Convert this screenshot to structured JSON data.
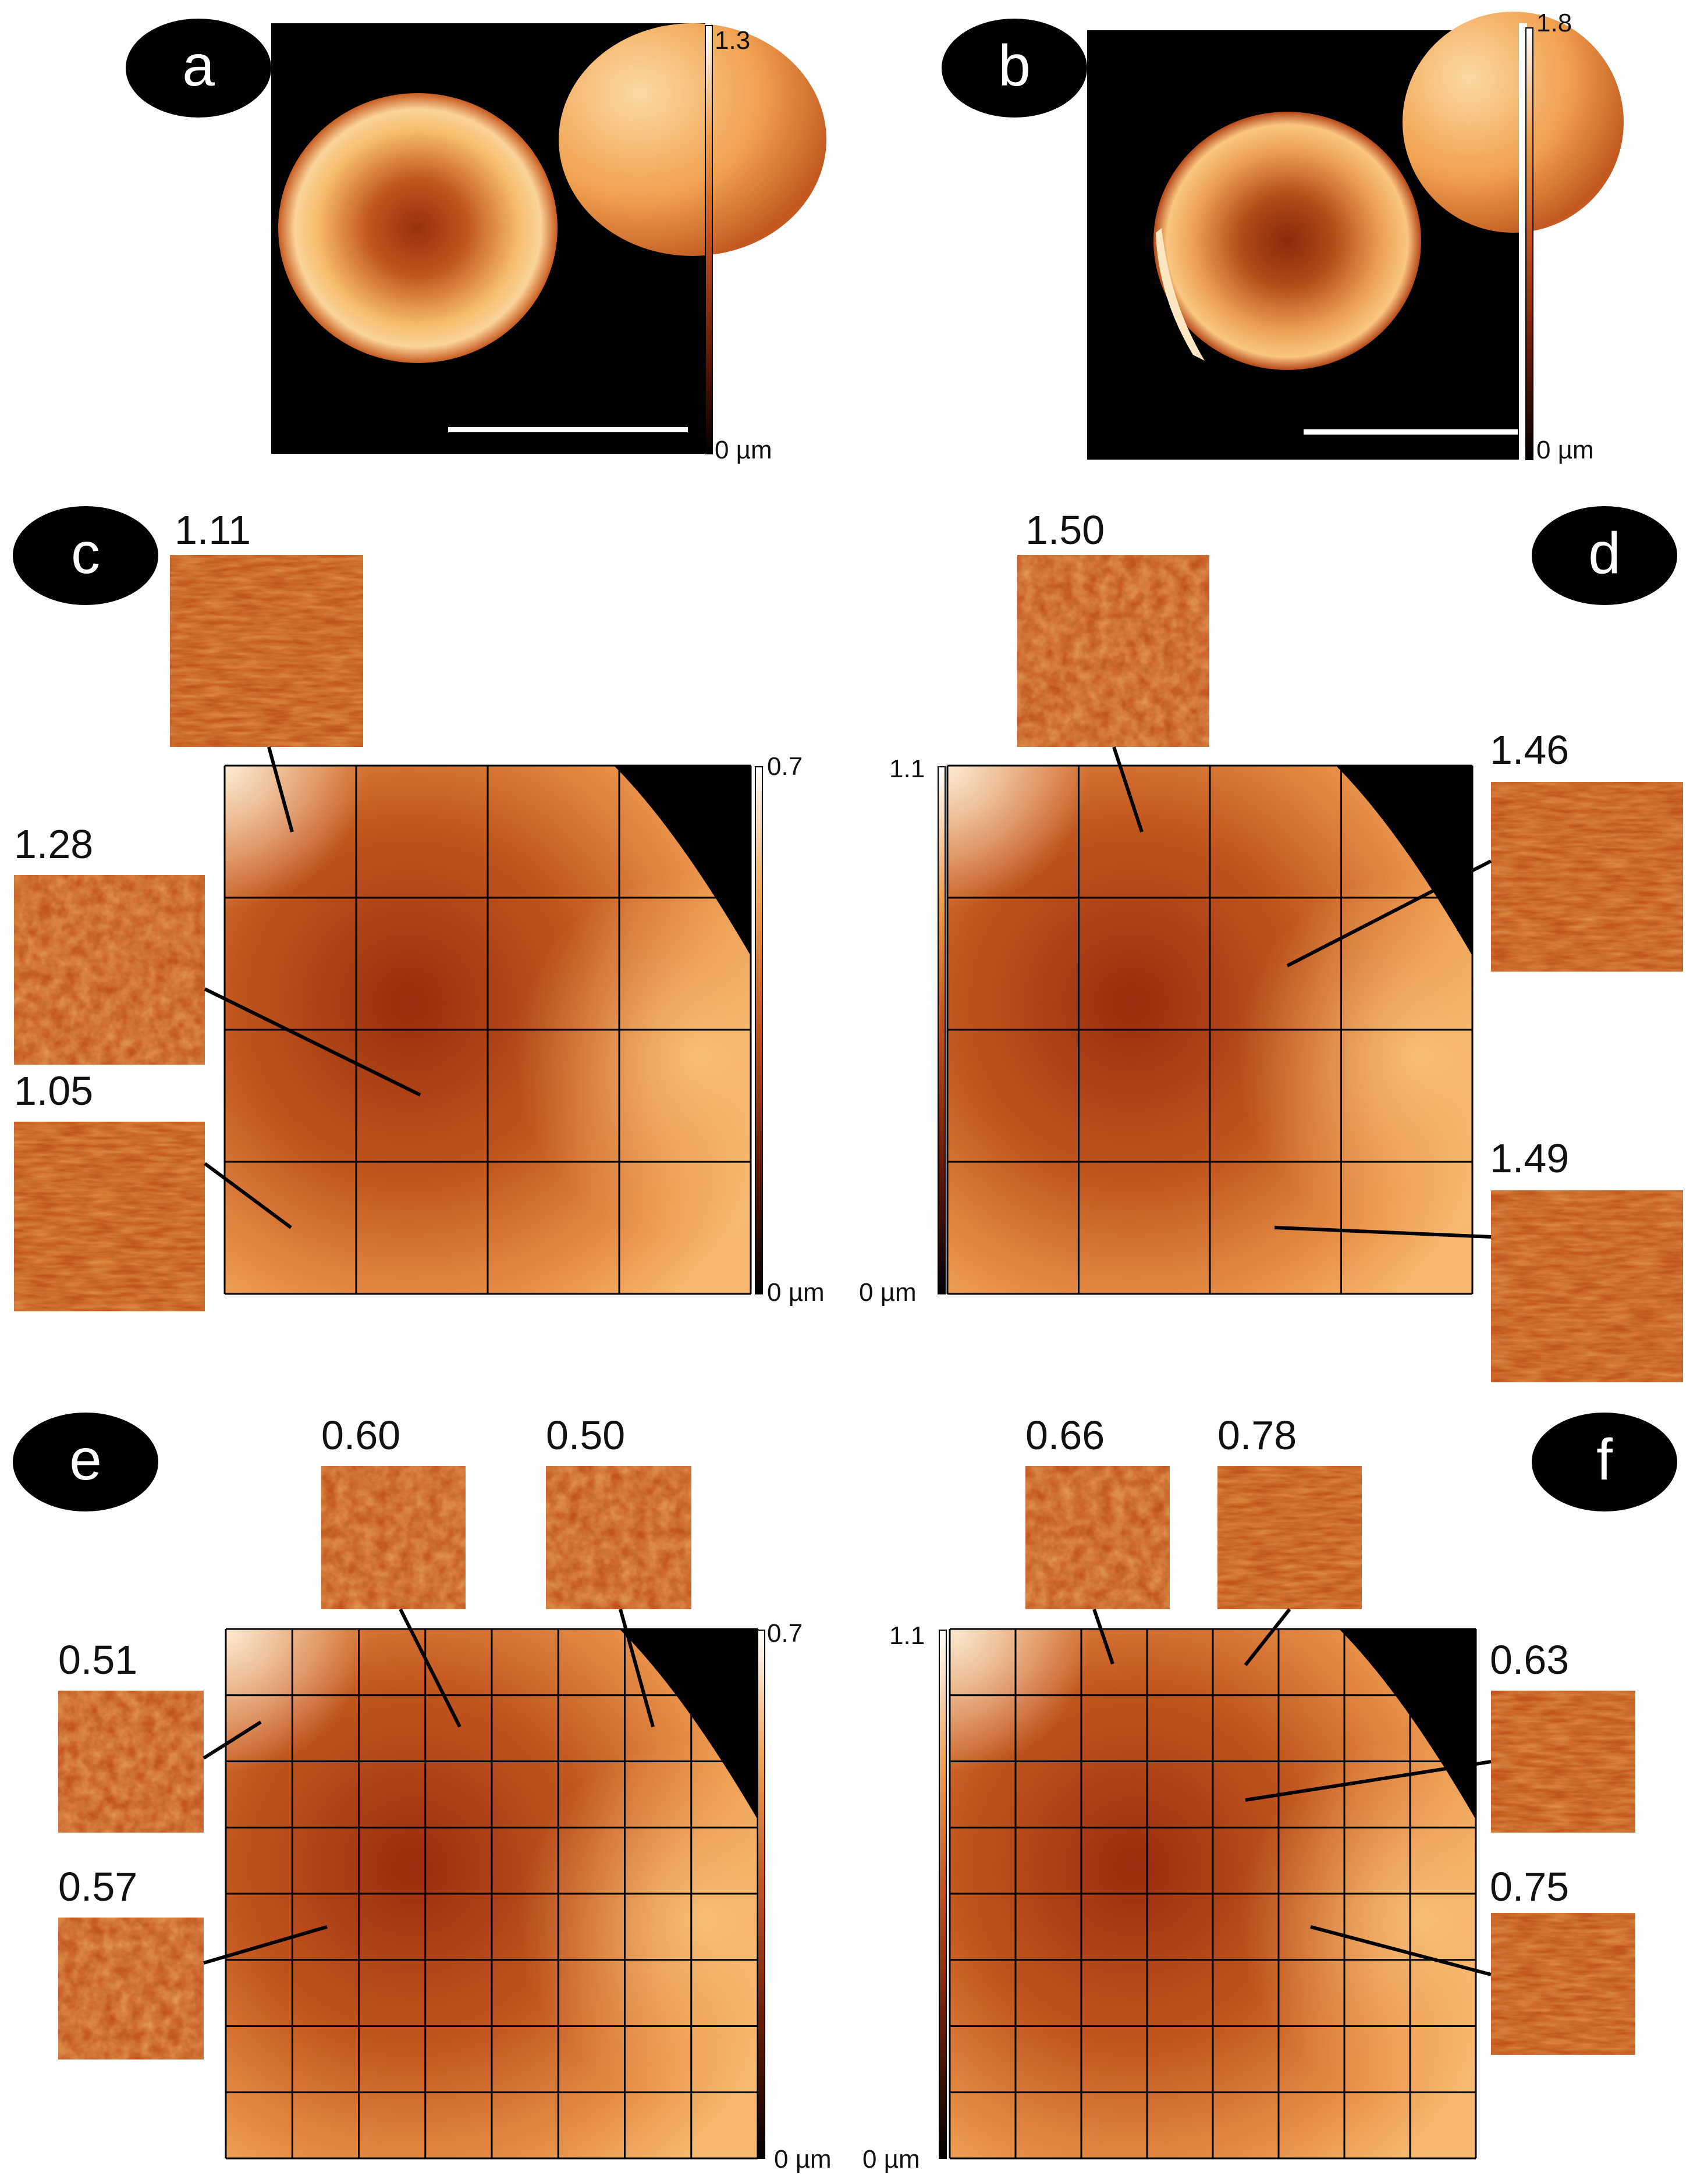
{
  "panels": [
    {
      "id": "a",
      "label": "a",
      "scale_max": "1.3",
      "scale_min": "0 µm"
    },
    {
      "id": "b",
      "label": "b",
      "scale_max": "1.8",
      "scale_min": "0 µm"
    },
    {
      "id": "c",
      "label": "c",
      "scale_max": "0.7",
      "scale_min": "0 µm",
      "insets": [
        "1.11",
        "1.28",
        "1.05"
      ]
    },
    {
      "id": "d",
      "label": "d",
      "scale_max": "1.1",
      "scale_min": "0 µm",
      "insets": [
        "1.50",
        "1.46",
        "1.49"
      ]
    },
    {
      "id": "e",
      "label": "e",
      "scale_max": "0.7",
      "scale_min": "0 µm",
      "insets": [
        "0.60",
        "0.50",
        "0.51",
        "0.57"
      ]
    },
    {
      "id": "f",
      "label": "f",
      "scale_max": "1.1",
      "scale_min": "0 µm",
      "insets": [
        "0.66",
        "0.78",
        "0.63",
        "0.75"
      ]
    }
  ],
  "colors": {
    "map_dark": "#000000",
    "map_mid": "#c0501c",
    "map_light": "#ffffff",
    "grid": "#000000"
  }
}
